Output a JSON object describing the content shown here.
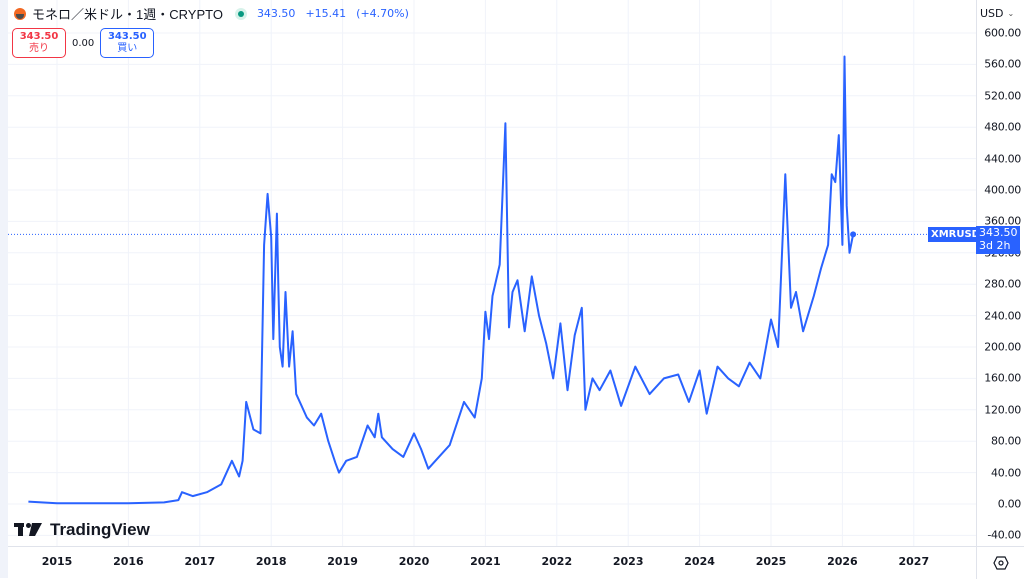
{
  "header": {
    "symbol_title": "モネロ／米ドル・1週・CRYPTO",
    "coin_icon": "monero-icon",
    "market_status": "open",
    "last_price": "343.50",
    "change": "+15.41",
    "change_pct": "(+4.70%)"
  },
  "trade": {
    "sell_price": "343.50",
    "sell_label": "売り",
    "spread": "0.00",
    "buy_price": "343.50",
    "buy_label": "買い"
  },
  "axis": {
    "currency": "USD",
    "y_ticks": [
      "600.00",
      "560.00",
      "520.00",
      "480.00",
      "440.00",
      "400.00",
      "360.00",
      "320.00",
      "280.00",
      "240.00",
      "200.00",
      "160.00",
      "120.00",
      "80.00",
      "40.00",
      "0.00",
      "-40.00"
    ],
    "x_ticks": [
      "2015",
      "2016",
      "2017",
      "2018",
      "2019",
      "2020",
      "2021",
      "2022",
      "2023",
      "2024",
      "2025",
      "2026",
      "2027"
    ]
  },
  "price_label": {
    "symbol": "XMRUSD",
    "price": "343.50",
    "countdown": "3d 2h"
  },
  "branding": {
    "logo_text": "TradingView"
  },
  "colors": {
    "line": "#2962ff",
    "sell": "#f23645",
    "buy": "#2962ff",
    "status": "#089981"
  },
  "chart_data": {
    "type": "line",
    "title": "モネロ／米ドル・1週・CRYPTO",
    "xlabel": "",
    "ylabel": "USD",
    "ylim": [
      -50,
      610
    ],
    "grid": true,
    "legend_position": "none",
    "series": [
      {
        "name": "XMRUSD",
        "x": [
          2014.6,
          2015.0,
          2015.5,
          2016.0,
          2016.5,
          2016.7,
          2016.75,
          2016.9,
          2017.1,
          2017.3,
          2017.45,
          2017.55,
          2017.6,
          2017.65,
          2017.75,
          2017.85,
          2017.9,
          2017.95,
          2018.0,
          2018.03,
          2018.08,
          2018.1,
          2018.12,
          2018.16,
          2018.2,
          2018.25,
          2018.3,
          2018.35,
          2018.4,
          2018.5,
          2018.6,
          2018.7,
          2018.8,
          2018.9,
          2018.95,
          2019.05,
          2019.2,
          2019.35,
          2019.45,
          2019.5,
          2019.55,
          2019.7,
          2019.85,
          2020.0,
          2020.1,
          2020.2,
          2020.3,
          2020.5,
          2020.7,
          2020.85,
          2020.95,
          2021.0,
          2021.05,
          2021.1,
          2021.2,
          2021.28,
          2021.33,
          2021.38,
          2021.45,
          2021.55,
          2021.65,
          2021.75,
          2021.85,
          2021.95,
          2022.05,
          2022.15,
          2022.25,
          2022.35,
          2022.4,
          2022.5,
          2022.6,
          2022.75,
          2022.9,
          2023.1,
          2023.3,
          2023.5,
          2023.7,
          2023.85,
          2024.0,
          2024.1,
          2024.25,
          2024.4,
          2024.55,
          2024.7,
          2024.85,
          2025.0,
          2025.1,
          2025.2,
          2025.28,
          2025.35,
          2025.45,
          2025.6,
          2025.7,
          2025.8,
          2025.85,
          2025.9,
          2025.95,
          2026.0,
          2026.03,
          2026.06,
          2026.1,
          2026.15
        ],
        "values": [
          3,
          1,
          1,
          1,
          2,
          5,
          15,
          10,
          15,
          25,
          55,
          35,
          55,
          130,
          95,
          90,
          330,
          395,
          340,
          210,
          370,
          280,
          200,
          175,
          270,
          175,
          220,
          140,
          130,
          110,
          100,
          115,
          80,
          52,
          40,
          55,
          60,
          100,
          85,
          115,
          85,
          70,
          60,
          90,
          70,
          45,
          55,
          75,
          130,
          110,
          160,
          245,
          210,
          265,
          305,
          485,
          225,
          270,
          285,
          220,
          290,
          240,
          205,
          160,
          230,
          145,
          215,
          250,
          120,
          160,
          145,
          170,
          125,
          175,
          140,
          160,
          165,
          130,
          170,
          115,
          175,
          160,
          150,
          180,
          160,
          235,
          200,
          420,
          250,
          270,
          220,
          265,
          300,
          330,
          420,
          410,
          470,
          330,
          570,
          380,
          320,
          343.5
        ]
      }
    ],
    "last_value": 343.5,
    "last_value_label": "XMRUSD 343.50"
  }
}
